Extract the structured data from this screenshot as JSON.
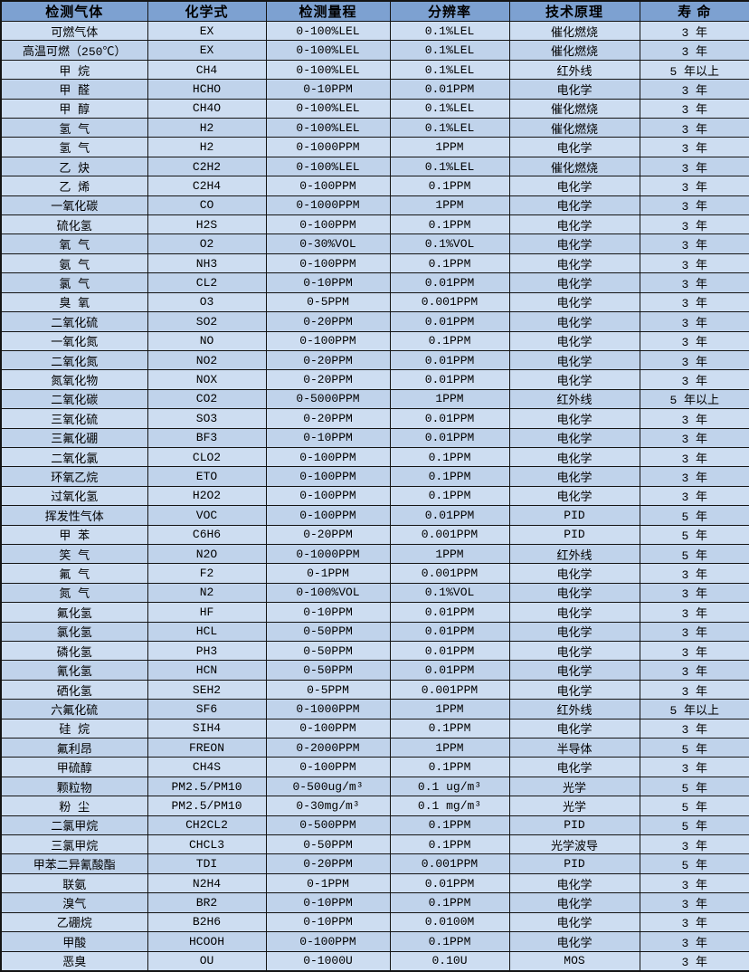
{
  "colors": {
    "header_bg": "#7da1d1",
    "row_odd": "#cdddf1",
    "row_even": "#c0d3eb",
    "grid": "#141414",
    "text": "#000000"
  },
  "table": {
    "columns": [
      "检测气体",
      "化学式",
      "检测量程",
      "分辨率",
      "技术原理",
      "寿 命"
    ],
    "column_keys": [
      "gas",
      "formula",
      "range",
      "resolution",
      "principle",
      "lifespan"
    ],
    "rows": [
      [
        "可燃气体",
        "EX",
        "0-100%LEL",
        "0.1%LEL",
        "催化燃烧",
        "3 年"
      ],
      [
        "高温可燃（250℃）",
        "EX",
        "0-100%LEL",
        "0.1%LEL",
        "催化燃烧",
        "3 年"
      ],
      [
        "甲 烷",
        "CH4",
        "0-100%LEL",
        "0.1%LEL",
        "红外线",
        "5 年以上"
      ],
      [
        "甲 醛",
        "HCHO",
        "0-10PPM",
        "0.01PPM",
        "电化学",
        "3 年"
      ],
      [
        "甲 醇",
        "CH4O",
        "0-100%LEL",
        "0.1%LEL",
        "催化燃烧",
        "3 年"
      ],
      [
        "氢 气",
        "H2",
        "0-100%LEL",
        "0.1%LEL",
        "催化燃烧",
        "3 年"
      ],
      [
        "氢 气",
        "H2",
        "0-1000PPM",
        "1PPM",
        "电化学",
        "3 年"
      ],
      [
        "乙 炔",
        "C2H2",
        "0-100%LEL",
        "0.1%LEL",
        "催化燃烧",
        "3 年"
      ],
      [
        "乙 烯",
        "C2H4",
        "0-100PPM",
        "0.1PPM",
        "电化学",
        "3 年"
      ],
      [
        "一氧化碳",
        "CO",
        "0-1000PPM",
        "1PPM",
        "电化学",
        "3 年"
      ],
      [
        "硫化氢",
        "H2S",
        "0-100PPM",
        "0.1PPM",
        "电化学",
        "3 年"
      ],
      [
        "氧 气",
        "O2",
        "0-30%VOL",
        "0.1%VOL",
        "电化学",
        "3 年"
      ],
      [
        "氨 气",
        "NH3",
        "0-100PPM",
        "0.1PPM",
        "电化学",
        "3 年"
      ],
      [
        "氯 气",
        "CL2",
        "0-10PPM",
        "0.01PPM",
        "电化学",
        "3 年"
      ],
      [
        "臭 氧",
        "O3",
        "0-5PPM",
        "0.001PPM",
        "电化学",
        "3 年"
      ],
      [
        "二氧化硫",
        "SO2",
        "0-20PPM",
        "0.01PPM",
        "电化学",
        "3 年"
      ],
      [
        "一氧化氮",
        "NO",
        "0-100PPM",
        "0.1PPM",
        "电化学",
        "3 年"
      ],
      [
        "二氧化氮",
        "NO2",
        "0-20PPM",
        "0.01PPM",
        "电化学",
        "3 年"
      ],
      [
        "氮氧化物",
        "NOX",
        "0-20PPM",
        "0.01PPM",
        "电化学",
        "3 年"
      ],
      [
        "二氧化碳",
        "CO2",
        "0-5000PPM",
        "1PPM",
        "红外线",
        "5 年以上"
      ],
      [
        "三氧化硫",
        "SO3",
        "0-20PPM",
        "0.01PPM",
        "电化学",
        "3 年"
      ],
      [
        "三氟化硼",
        "BF3",
        "0-10PPM",
        "0.01PPM",
        "电化学",
        "3 年"
      ],
      [
        "二氧化氯",
        "CLO2",
        "0-100PPM",
        "0.1PPM",
        "电化学",
        "3 年"
      ],
      [
        "环氧乙烷",
        "ETO",
        "0-100PPM",
        "0.1PPM",
        "电化学",
        "3 年"
      ],
      [
        "过氧化氢",
        "H2O2",
        "0-100PPM",
        "0.1PPM",
        "电化学",
        "3 年"
      ],
      [
        "挥发性气体",
        "VOC",
        "0-100PPM",
        "0.01PPM",
        "PID",
        "5 年"
      ],
      [
        "甲 苯",
        "C6H6",
        "0-20PPM",
        "0.001PPM",
        "PID",
        "5 年"
      ],
      [
        "笑 气",
        "N2O",
        "0-1000PPM",
        "1PPM",
        "红外线",
        "5 年"
      ],
      [
        "氟 气",
        "F2",
        "0-1PPM",
        "0.001PPM",
        "电化学",
        "3 年"
      ],
      [
        "氮 气",
        "N2",
        "0-100%VOL",
        "0.1%VOL",
        "电化学",
        "3 年"
      ],
      [
        "氟化氢",
        "HF",
        "0-10PPM",
        "0.01PPM",
        "电化学",
        "3 年"
      ],
      [
        "氯化氢",
        "HCL",
        "0-50PPM",
        "0.01PPM",
        "电化学",
        "3 年"
      ],
      [
        "磷化氢",
        "PH3",
        "0-50PPM",
        "0.01PPM",
        "电化学",
        "3 年"
      ],
      [
        "氰化氢",
        "HCN",
        "0-50PPM",
        "0.01PPM",
        "电化学",
        "3 年"
      ],
      [
        "硒化氢",
        "SEH2",
        "0-5PPM",
        "0.001PPM",
        "电化学",
        "3 年"
      ],
      [
        "六氟化硫",
        "SF6",
        "0-1000PPM",
        "1PPM",
        "红外线",
        "5 年以上"
      ],
      [
        "硅 烷",
        "SIH4",
        "0-100PPM",
        "0.1PPM",
        "电化学",
        "3 年"
      ],
      [
        "氟利昂",
        "FREON",
        "0-2000PPM",
        "1PPM",
        "半导体",
        "5 年"
      ],
      [
        "甲硫醇",
        "CH4S",
        "0-100PPM",
        "0.1PPM",
        "电化学",
        "3 年"
      ],
      [
        "颗粒物",
        "PM2.5/PM10",
        "0-500ug/m³",
        "0.1 ug/m³",
        "光学",
        "5 年"
      ],
      [
        "粉 尘",
        "PM2.5/PM10",
        "0-30mg/m³",
        "0.1 mg/m³",
        "光学",
        "5 年"
      ],
      [
        "二氯甲烷",
        "CH2CL2",
        "0-500PPM",
        "0.1PPM",
        "PID",
        "5 年"
      ],
      [
        "三氯甲烷",
        "CHCL3",
        "0-50PPM",
        "0.1PPM",
        "光学波导",
        "3 年"
      ],
      [
        "甲苯二异氰酸酯",
        "TDI",
        "0-20PPM",
        "0.001PPM",
        "PID",
        "5 年"
      ],
      [
        "联氨",
        "N2H4",
        "0-1PPM",
        "0.01PPM",
        "电化学",
        "3 年"
      ],
      [
        "溴气",
        "BR2",
        "0-10PPM",
        "0.1PPM",
        "电化学",
        "3 年"
      ],
      [
        "乙硼烷",
        "B2H6",
        "0-10PPM",
        "0.0100M",
        "电化学",
        "3 年"
      ],
      [
        "甲酸",
        "HCOOH",
        "0-100PPM",
        "0.1PPM",
        "电化学",
        "3 年"
      ],
      [
        "恶臭",
        "OU",
        "0-1000U",
        "0.10U",
        "MOS",
        "3 年"
      ]
    ]
  }
}
